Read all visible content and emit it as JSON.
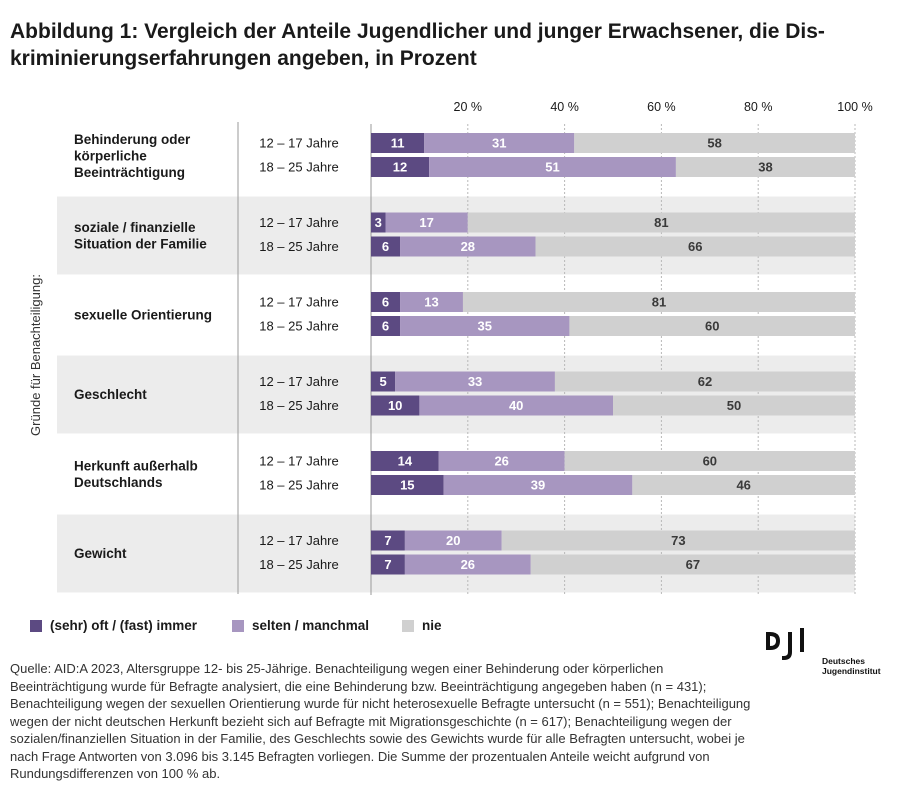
{
  "title": {
    "line1": "Abbildung 1: Vergleich der Anteile Jugendlicher und junger Erwachsener, die Dis-",
    "line2": "kriminierungserfahrungen angeben, in Prozent"
  },
  "colors": {
    "often": "#5c4a82",
    "rarely": "#a796c0",
    "never": "#d0d0d0",
    "band": "#ececec"
  },
  "legend": {
    "often": "(sehr) oft / (fast) immer",
    "rarely": "selten / manchmal",
    "never": "nie"
  },
  "chart_data": {
    "type": "bar",
    "stacked": true,
    "orientation": "horizontal",
    "ylabel": "Gründe für Benachteiligung:",
    "xlim": [
      0,
      100
    ],
    "xticks": [
      "20 %",
      "40 %",
      "60 %",
      "80 %",
      "100 %"
    ],
    "xtick_values": [
      20,
      40,
      60,
      80,
      100
    ],
    "legend_position": "bottom",
    "series": [
      {
        "name": "(sehr) oft / (fast) immer",
        "key": "often"
      },
      {
        "name": "selten / manchmal",
        "key": "rarely"
      },
      {
        "name": "nie",
        "key": "never"
      }
    ],
    "groups": [
      {
        "label_lines": [
          "Behinderung oder",
          "körperliche",
          "Beeinträchtigung"
        ],
        "rows": [
          {
            "age": "12 – 17 Jahre",
            "values": [
              11,
              31,
              58
            ]
          },
          {
            "age": "18 – 25 Jahre",
            "values": [
              12,
              51,
              38
            ]
          }
        ]
      },
      {
        "label_lines": [
          "soziale / finanzielle",
          "Situation der Familie"
        ],
        "rows": [
          {
            "age": "12 – 17 Jahre",
            "values": [
              3,
              17,
              81
            ]
          },
          {
            "age": "18 – 25 Jahre",
            "values": [
              6,
              28,
              66
            ]
          }
        ]
      },
      {
        "label_lines": [
          "sexuelle Orientierung"
        ],
        "rows": [
          {
            "age": "12 – 17 Jahre",
            "values": [
              6,
              13,
              81
            ]
          },
          {
            "age": "18 – 25 Jahre",
            "values": [
              6,
              35,
              60
            ]
          }
        ]
      },
      {
        "label_lines": [
          "Geschlecht"
        ],
        "rows": [
          {
            "age": "12 – 17 Jahre",
            "values": [
              5,
              33,
              62
            ]
          },
          {
            "age": "18 – 25 Jahre",
            "values": [
              10,
              40,
              50
            ]
          }
        ]
      },
      {
        "label_lines": [
          "Herkunft außerhalb",
          "Deutschlands"
        ],
        "rows": [
          {
            "age": "12 – 17 Jahre",
            "values": [
              14,
              26,
              60
            ]
          },
          {
            "age": "18 – 25 Jahre",
            "values": [
              15,
              39,
              46
            ]
          }
        ]
      },
      {
        "label_lines": [
          "Gewicht"
        ],
        "rows": [
          {
            "age": "12 – 17 Jahre",
            "values": [
              7,
              20,
              73
            ]
          },
          {
            "age": "18 – 25 Jahre",
            "values": [
              7,
              26,
              67
            ]
          }
        ]
      }
    ]
  },
  "source": "Quelle: AID:A 2023, Altersgruppe 12- bis 25-Jährige. Benachteiligung wegen einer Behinderung oder körperlichen Beeinträchtigung wurde für Befragte analysiert, die eine Behinderung bzw. Beeinträchtigung angegeben haben (n = 431); Benachteiligung wegen der sexuellen Orientierung wurde für nicht heterosexuelle Befragte untersucht (n = 551); Benachteiligung wegen der nicht deutschen Herkunft bezieht sich auf Befragte mit Migrationsgeschichte (n = 617); Benachteiligung wegen der sozialen/finanziellen Situation in der Familie, des Geschlechts sowie des Gewichts wurde für alle Befragten untersucht, wobei je nach Frage Antworten von 3.096 bis 3.145 Befragten vorliegen. Die Summe der prozentualen Anteile weicht aufgrund von Rundungsdifferenzen von 100 % ab.",
  "logo": {
    "mark": "DJI",
    "line1": "Deutsches",
    "line2": "Jugendinstitut"
  }
}
